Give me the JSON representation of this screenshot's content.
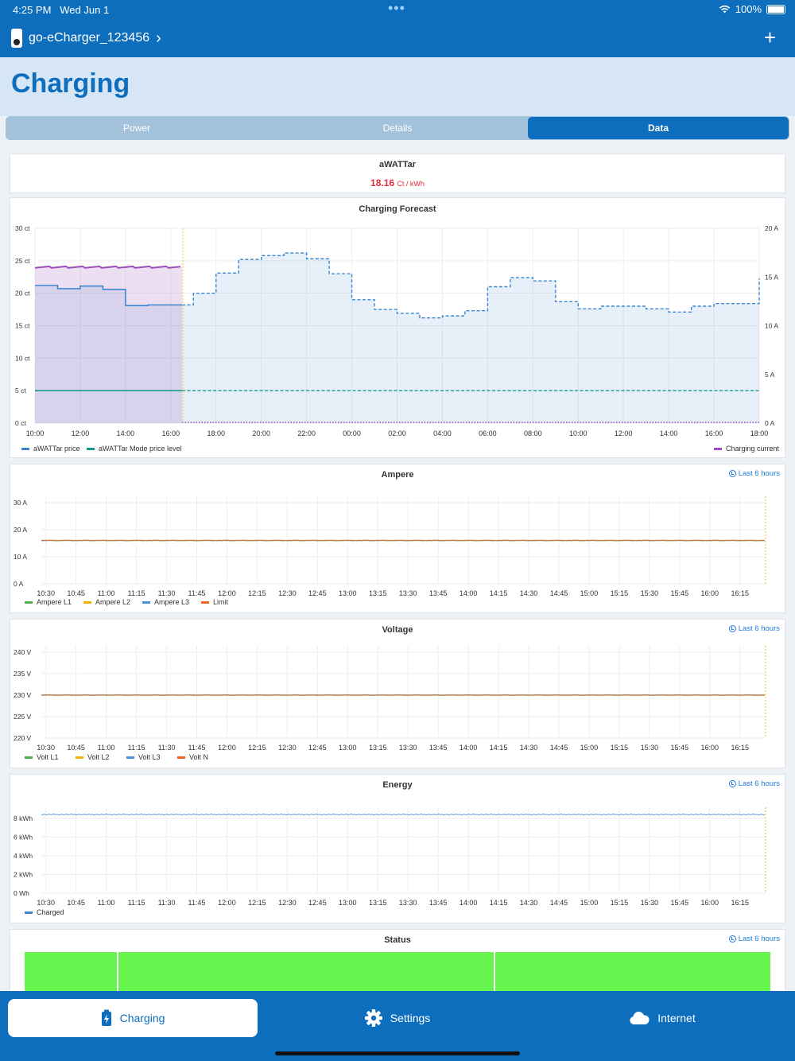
{
  "status_bar": {
    "time": "4:25 PM",
    "date": "Wed Jun 1",
    "battery": "100%",
    "wifi_icon": "wifi-icon"
  },
  "nav": {
    "device_name": "go-eCharger_123456",
    "chevron": "›",
    "add": "+"
  },
  "page_title": "Charging",
  "tabs": [
    {
      "label": "Power",
      "active": false
    },
    {
      "label": "Details",
      "active": false
    },
    {
      "label": "Data",
      "active": true
    }
  ],
  "awattar": {
    "title": "aWATTar",
    "price": "18.16",
    "unit": "Ct / kWh"
  },
  "forecast": {
    "title": "Charging Forecast",
    "y_left_ticks": [
      "30 ct",
      "25 ct",
      "20 ct",
      "15 ct",
      "10 ct",
      "5 ct",
      "0 ct"
    ],
    "y_right_ticks": [
      "20 A",
      "15 A",
      "10 A",
      "5 A",
      "0 A"
    ],
    "x_ticks": [
      "10:00",
      "12:00",
      "14:00",
      "16:00",
      "18:00",
      "20:00",
      "22:00",
      "00:00",
      "02:00",
      "04:00",
      "06:00",
      "08:00",
      "10:00",
      "12:00",
      "14:00",
      "16:00",
      "18:00"
    ],
    "legend": [
      {
        "label": "aWATTar price",
        "color": "#3c86d0"
      },
      {
        "label": "aWATTar Mode price level",
        "color": "#179a86"
      },
      {
        "label": "Charging current",
        "color": "#9c4fb8"
      }
    ]
  },
  "ampere": {
    "title": "Ampere",
    "range": "Last 6 hours",
    "y_ticks": [
      "30 A",
      "20 A",
      "10 A",
      "0 A"
    ],
    "x_ticks": [
      "10:30",
      "10:45",
      "11:00",
      "11:15",
      "11:30",
      "11:45",
      "12:00",
      "12:15",
      "12:30",
      "12:45",
      "13:00",
      "13:15",
      "13:30",
      "13:45",
      "14:00",
      "14:15",
      "14:30",
      "14:45",
      "15:00",
      "15:15",
      "15:30",
      "15:45",
      "16:00",
      "16:15"
    ],
    "legend": [
      {
        "label": "Ampere L1",
        "color": "#4caf50"
      },
      {
        "label": "Ampere L2",
        "color": "#f0b400"
      },
      {
        "label": "Ampere L3",
        "color": "#4a90e2"
      },
      {
        "label": "Limit",
        "color": "#f5631d"
      }
    ]
  },
  "voltage": {
    "title": "Voltage",
    "range": "Last 6 hours",
    "y_ticks": [
      "240 V",
      "235 V",
      "230 V",
      "225 V",
      "220 V"
    ],
    "x_ticks": [
      "10:30",
      "10:45",
      "11:00",
      "11:15",
      "11:30",
      "11:45",
      "12:00",
      "12:15",
      "12:30",
      "12:45",
      "13:00",
      "13:15",
      "13:30",
      "13:45",
      "14:00",
      "14:15",
      "14:30",
      "14:45",
      "15:00",
      "15:15",
      "15:30",
      "15:45",
      "16:00",
      "16:15"
    ],
    "legend": [
      {
        "label": "Volt L1",
        "color": "#4caf50"
      },
      {
        "label": "Volt L2",
        "color": "#f0b400"
      },
      {
        "label": "Volt L3",
        "color": "#4a90e2"
      },
      {
        "label": "Volt N",
        "color": "#f5631d"
      }
    ]
  },
  "energy": {
    "title": "Energy",
    "range": "Last 6 hours",
    "y_ticks": [
      "8 kWh",
      "6 kWh",
      "4 kWh",
      "2 kWh",
      "0 Wh"
    ],
    "x_ticks": [
      "10:30",
      "10:45",
      "11:00",
      "11:15",
      "11:30",
      "11:45",
      "12:00",
      "12:15",
      "12:30",
      "12:45",
      "13:00",
      "13:15",
      "13:30",
      "13:45",
      "14:00",
      "14:15",
      "14:30",
      "14:45",
      "15:00",
      "15:15",
      "15:30",
      "15:45",
      "16:00",
      "16:15"
    ],
    "legend": [
      {
        "label": "Charged",
        "color": "#3c86d0"
      }
    ]
  },
  "status_chart": {
    "title": "Status",
    "range": "Last 6 hours",
    "color": "#66f44f"
  },
  "bottom_tabs": [
    {
      "label": "Charging",
      "icon": "battery-bolt-icon",
      "active": true
    },
    {
      "label": "Settings",
      "icon": "gear-icon",
      "active": false
    },
    {
      "label": "Internet",
      "icon": "cloud-icon",
      "active": false
    }
  ],
  "chart_data": [
    {
      "type": "line",
      "title": "Charging Forecast",
      "x": [
        "10:00",
        "11:00",
        "12:00",
        "13:00",
        "14:00",
        "15:00",
        "16:00",
        "17:00",
        "18:00",
        "19:00",
        "20:00",
        "21:00",
        "22:00",
        "23:00",
        "00:00",
        "01:00",
        "02:00",
        "03:00",
        "04:00",
        "05:00",
        "06:00",
        "07:00",
        "08:00",
        "09:00",
        "10:00",
        "11:00",
        "12:00",
        "13:00",
        "14:00",
        "15:00",
        "16:00",
        "17:00",
        "18:00"
      ],
      "series": [
        {
          "name": "aWATTar price",
          "unit": "ct",
          "values": [
            21.2,
            20.7,
            21.1,
            20.6,
            18.1,
            18.2,
            18.2,
            20.0,
            23.1,
            25.2,
            25.8,
            26.2,
            25.3,
            23.0,
            19.0,
            17.5,
            16.9,
            16.2,
            16.5,
            17.3,
            21.0,
            22.4,
            21.9,
            18.7,
            17.6,
            18.0,
            18.0,
            17.6,
            17.1,
            18.0,
            18.4,
            18.4,
            22.3
          ]
        },
        {
          "name": "aWATTar Mode price level",
          "unit": "ct",
          "values": [
            5,
            5,
            5,
            5,
            5,
            5,
            5,
            5,
            5,
            5,
            5,
            5,
            5,
            5,
            5,
            5,
            5,
            5,
            5,
            5,
            5,
            5,
            5,
            5,
            5,
            5,
            5,
            5,
            5,
            5,
            5,
            5,
            5
          ]
        },
        {
          "name": "Charging current",
          "unit": "A",
          "values": [
            16,
            16,
            16,
            16,
            16,
            16,
            16,
            0,
            0,
            0,
            0,
            0,
            0,
            0,
            0,
            0,
            0,
            0,
            0,
            0,
            0,
            0,
            0,
            0,
            0,
            0,
            0,
            0,
            0,
            0,
            0,
            0,
            0
          ]
        }
      ],
      "ylim": [
        0,
        30
      ],
      "y2lim": [
        0,
        20
      ],
      "grid": true
    },
    {
      "type": "line",
      "title": "Ampere",
      "x": [
        "10:30",
        "16:15"
      ],
      "series": [
        {
          "name": "Ampere L1",
          "values": [
            16,
            16
          ]
        },
        {
          "name": "Ampere L2",
          "values": [
            16,
            16
          ]
        },
        {
          "name": "Ampere L3",
          "values": [
            16,
            16
          ]
        },
        {
          "name": "Limit",
          "values": [
            16,
            16
          ]
        }
      ],
      "ylim": [
        0,
        30
      ],
      "grid": true
    },
    {
      "type": "line",
      "title": "Voltage",
      "x": [
        "10:30",
        "16:15"
      ],
      "series": [
        {
          "name": "Volt L1",
          "values": [
            230,
            230
          ]
        },
        {
          "name": "Volt L2",
          "values": [
            230,
            230
          ]
        },
        {
          "name": "Volt L3",
          "values": [
            230,
            230
          ]
        },
        {
          "name": "Volt N",
          "values": [
            230,
            230
          ]
        }
      ],
      "ylim": [
        220,
        240
      ],
      "grid": true
    },
    {
      "type": "area",
      "title": "Energy",
      "x": [
        "10:30",
        "16:15"
      ],
      "series": [
        {
          "name": "Charged",
          "unit": "kWh",
          "values": [
            8.4,
            8.4
          ]
        }
      ],
      "ylim": [
        0,
        8.5
      ],
      "grid": true
    }
  ]
}
